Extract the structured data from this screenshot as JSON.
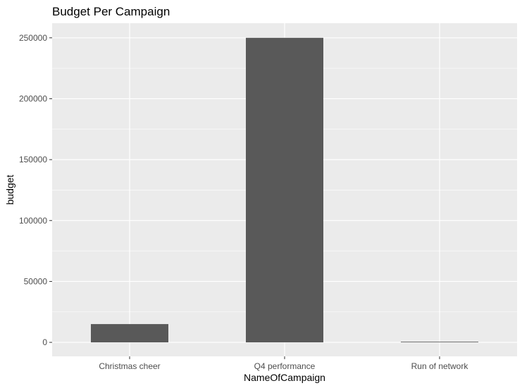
{
  "chart_data": {
    "type": "bar",
    "title": "Budget Per Campaign",
    "xlabel": "NameOfCampaign",
    "ylabel": "budget",
    "categories": [
      "Christmas cheer",
      "Q4 performance",
      "Run of network"
    ],
    "values": [
      15000,
      250000,
      500
    ],
    "ylim": [
      -11500,
      262000
    ],
    "yticks": [
      0,
      50000,
      100000,
      150000,
      200000,
      250000
    ],
    "ytick_labels": [
      "0",
      "50000",
      "100000",
      "150000",
      "200000",
      "250000"
    ],
    "grid": true,
    "legend": "none",
    "colors": {
      "bar": "#595959",
      "panel": "#ebebeb",
      "grid_major": "#ffffff",
      "tick_label": "#4d4d4d",
      "tick_mark": "#333333"
    }
  }
}
